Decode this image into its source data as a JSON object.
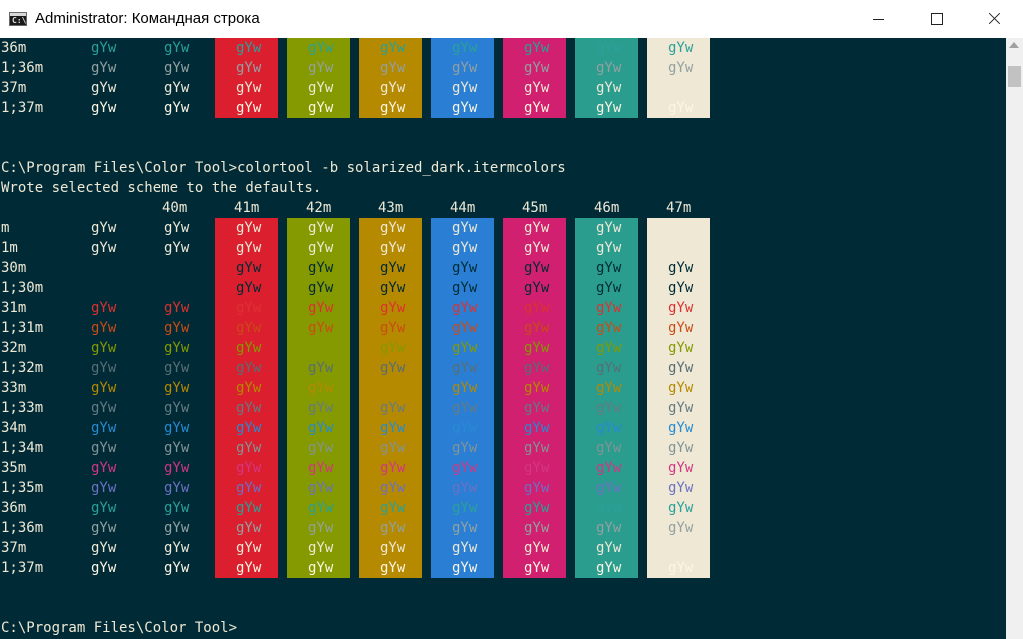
{
  "window": {
    "title": "Administrator: Командная строка",
    "icon_label": "C:\\"
  },
  "colors": {
    "console_bg": "#002b36",
    "default_fg": "#eee8d5",
    "bg_40m": "#002b36",
    "bg_41m": "#dc1f2f",
    "bg_42m": "#859900",
    "bg_43m": "#b58900",
    "bg_44m": "#2a7fd4",
    "bg_45m": "#d0206f",
    "bg_46m": "#2a9d8f",
    "bg_47m": "#eee8d5"
  },
  "sample_text": "gYw",
  "top_section": {
    "rows": [
      "36m",
      "1;36m",
      "37m",
      "1;37m"
    ]
  },
  "command_line": "C:\\Program Files\\Color Tool>colortool -b solarized_dark.itermcolors",
  "result_line": "Wrote selected scheme to the defaults.",
  "table": {
    "headers": [
      "40m",
      "41m",
      "42m",
      "43m",
      "44m",
      "45m",
      "46m",
      "47m"
    ],
    "rows": [
      "m",
      "1m",
      "30m",
      "1;30m",
      "31m",
      "1;31m",
      "32m",
      "1;32m",
      "33m",
      "1;33m",
      "34m",
      "1;34m",
      "35m",
      "1;35m",
      "36m",
      "1;36m",
      "37m",
      "1;37m"
    ]
  },
  "prompt": "C:\\Program Files\\Color Tool>"
}
